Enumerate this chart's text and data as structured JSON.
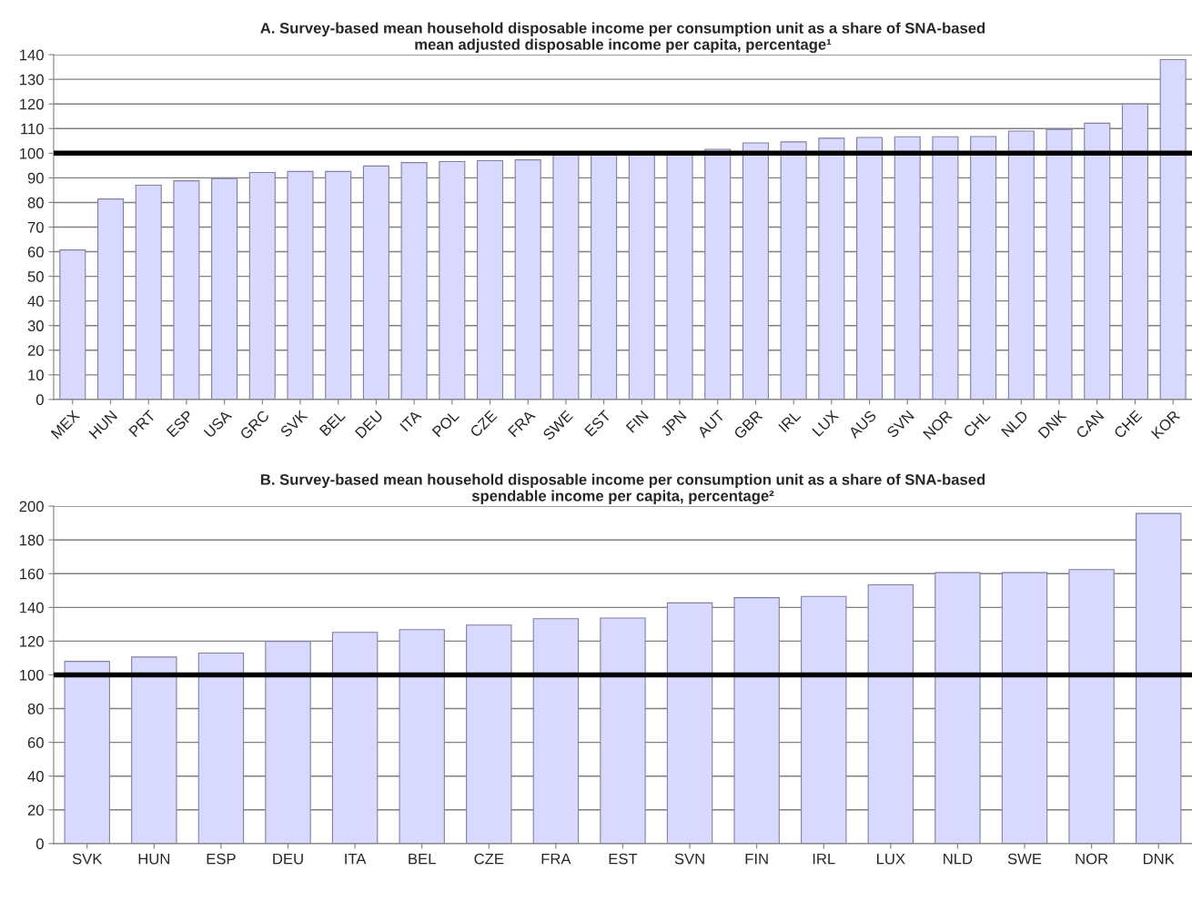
{
  "chart_data": [
    {
      "type": "bar",
      "title": "A. Survey-based mean household disposable income per consumption unit as a share of SNA-based\nmean adjusted disposable income per capita, percentage¹",
      "categories": [
        "MEX",
        "HUN",
        "PRT",
        "ESP",
        "USA",
        "GRC",
        "SVK",
        "BEL",
        "DEU",
        "ITA",
        "POL",
        "CZE",
        "FRA",
        "SWE",
        "EST",
        "FIN",
        "JPN",
        "AUT",
        "GBR",
        "IRL",
        "LUX",
        "AUS",
        "SVN",
        "NOR",
        "CHL",
        "NLD",
        "DNK",
        "CAN",
        "CHE",
        "KOR"
      ],
      "values": [
        60.7,
        81.4,
        87,
        88.8,
        89.7,
        92.2,
        92.6,
        92.6,
        94.8,
        96.2,
        96.6,
        97.0,
        97.3,
        99.5,
        99.5,
        99.7,
        99.8,
        101.6,
        104.2,
        104.6,
        106.1,
        106.4,
        106.7,
        106.7,
        106.8,
        109,
        109.7,
        112.2,
        120,
        138
      ],
      "color": "#d9d9ff",
      "ylim": [
        0,
        140
      ],
      "yticks": [
        0,
        10,
        20,
        30,
        40,
        50,
        60,
        70,
        80,
        90,
        100,
        110,
        120,
        130,
        140
      ],
      "grid": "y",
      "ref_lines": [
        {
          "axis": "y",
          "value": 100,
          "color": "#000000"
        }
      ]
    },
    {
      "type": "bar",
      "title": "B. Survey-based mean household disposable income per consumption unit as a share of SNA-based\nspendable income per capita, percentage²",
      "categories": [
        "SVK",
        "HUN",
        "ESP",
        "DEU",
        "ITA",
        "BEL",
        "CZE",
        "FRA",
        "EST",
        "SVN",
        "FIN",
        "IRL",
        "LUX",
        "NLD",
        "SWE",
        "NOR",
        "DNK"
      ],
      "values": [
        108,
        110.6,
        112.9,
        119.8,
        125.2,
        126.8,
        129.5,
        133.3,
        133.7,
        142.7,
        145.8,
        146.5,
        153.4,
        160.6,
        160.6,
        162.4,
        195.7
      ],
      "color": "#d9d9ff",
      "ylim": [
        0,
        200
      ],
      "yticks": [
        0,
        20,
        40,
        60,
        80,
        100,
        120,
        140,
        160,
        180,
        200
      ],
      "grid": "y",
      "ref_lines": [
        {
          "axis": "y",
          "value": 100,
          "color": "#000000"
        }
      ]
    }
  ]
}
